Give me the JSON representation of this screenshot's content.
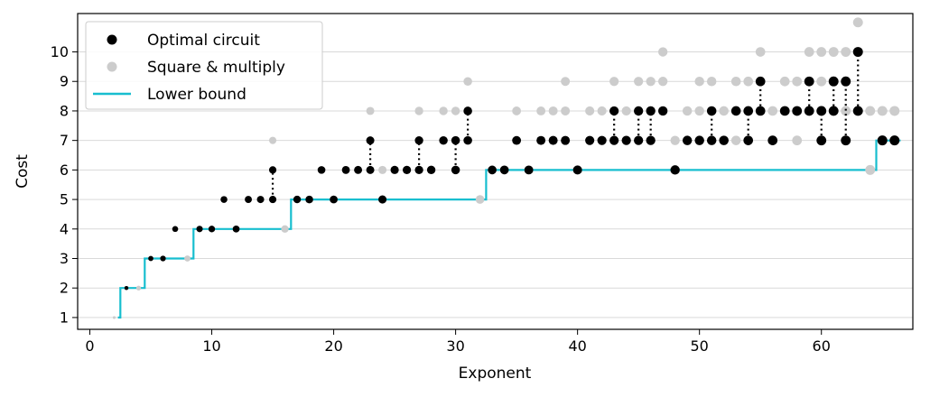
{
  "chart_data": {
    "type": "scatter",
    "xlabel": "Exponent",
    "ylabel": "Cost",
    "xlim": [
      -1,
      67.5
    ],
    "ylim": [
      0.6,
      11.3
    ],
    "x_ticks": [
      0,
      10,
      20,
      30,
      40,
      50,
      60
    ],
    "y_ticks": [
      1,
      2,
      3,
      4,
      5,
      6,
      7,
      8,
      9,
      10
    ],
    "grid": "horizontal",
    "legend_position": "top-left",
    "legend": {
      "optimal": "Optimal circuit",
      "square": "Square & multiply",
      "bound": "Lower bound"
    },
    "colors": {
      "optimal": "#000000",
      "square": "#cccccc",
      "bound": "#17becf",
      "connector": "#000000",
      "grid": "#d9d9d9"
    },
    "series": [
      {
        "key": "square",
        "points": [
          [
            2,
            1
          ],
          [
            3,
            2
          ],
          [
            4,
            2
          ],
          [
            5,
            3
          ],
          [
            6,
            3
          ],
          [
            7,
            4
          ],
          [
            8,
            3
          ],
          [
            9,
            4
          ],
          [
            10,
            4
          ],
          [
            11,
            5
          ],
          [
            12,
            4
          ],
          [
            13,
            5
          ],
          [
            14,
            5
          ],
          [
            15,
            6
          ],
          [
            16,
            4
          ],
          [
            17,
            5
          ],
          [
            18,
            5
          ],
          [
            19,
            6
          ],
          [
            20,
            5
          ],
          [
            21,
            6
          ],
          [
            22,
            6
          ],
          [
            23,
            7
          ],
          [
            24,
            6
          ],
          [
            25,
            6
          ],
          [
            26,
            6
          ],
          [
            27,
            7
          ],
          [
            28,
            6
          ],
          [
            29,
            7
          ],
          [
            30,
            7
          ],
          [
            31,
            8
          ],
          [
            32,
            5
          ],
          [
            33,
            6
          ],
          [
            34,
            6
          ],
          [
            35,
            7
          ],
          [
            36,
            6
          ],
          [
            37,
            7
          ],
          [
            38,
            7
          ],
          [
            39,
            8
          ],
          [
            40,
            6
          ],
          [
            41,
            7
          ],
          [
            42,
            7
          ],
          [
            43,
            8
          ],
          [
            44,
            7
          ],
          [
            45,
            8
          ],
          [
            46,
            8
          ],
          [
            47,
            9
          ],
          [
            48,
            6
          ],
          [
            49,
            7
          ],
          [
            50,
            7
          ],
          [
            51,
            8
          ],
          [
            52,
            7
          ],
          [
            53,
            8
          ],
          [
            54,
            8
          ],
          [
            55,
            9
          ],
          [
            56,
            7
          ],
          [
            57,
            8
          ],
          [
            58,
            8
          ],
          [
            59,
            9
          ],
          [
            60,
            8
          ],
          [
            61,
            9
          ],
          [
            62,
            9
          ],
          [
            63,
            10
          ],
          [
            64,
            6
          ],
          [
            65,
            7
          ],
          [
            66,
            7
          ],
          [
            31,
            9
          ],
          [
            35,
            8
          ],
          [
            37,
            8
          ],
          [
            38,
            8
          ],
          [
            39,
            9
          ],
          [
            41,
            8
          ],
          [
            42,
            8
          ],
          [
            43,
            9
          ],
          [
            45,
            9
          ],
          [
            46,
            9
          ],
          [
            47,
            10
          ],
          [
            49,
            8
          ],
          [
            50,
            8
          ],
          [
            51,
            9
          ],
          [
            52,
            8
          ],
          [
            53,
            9
          ],
          [
            54,
            9
          ],
          [
            55,
            10
          ],
          [
            56,
            8
          ],
          [
            57,
            9
          ],
          [
            58,
            9
          ],
          [
            59,
            10
          ],
          [
            60,
            9
          ],
          [
            61,
            10
          ],
          [
            62,
            10
          ],
          [
            63,
            11
          ],
          [
            15,
            7
          ],
          [
            23,
            8
          ],
          [
            27,
            8
          ],
          [
            29,
            8
          ],
          [
            30,
            8
          ],
          [
            44,
            8
          ],
          [
            46,
            7
          ],
          [
            48,
            7
          ],
          [
            50,
            9
          ],
          [
            53,
            7
          ],
          [
            58,
            7
          ],
          [
            60,
            10
          ],
          [
            62,
            8
          ],
          [
            64,
            8
          ],
          [
            65,
            8
          ],
          [
            66,
            8
          ]
        ]
      },
      {
        "key": "optimal",
        "points": [
          [
            3,
            2
          ],
          [
            5,
            3
          ],
          [
            6,
            3
          ],
          [
            7,
            4
          ],
          [
            9,
            4
          ],
          [
            10,
            4
          ],
          [
            11,
            5
          ],
          [
            12,
            4
          ],
          [
            13,
            5
          ],
          [
            14,
            5
          ],
          [
            15,
            5
          ],
          [
            15,
            6
          ],
          [
            17,
            5
          ],
          [
            18,
            5
          ],
          [
            19,
            6
          ],
          [
            20,
            5
          ],
          [
            21,
            6
          ],
          [
            22,
            6
          ],
          [
            23,
            6
          ],
          [
            23,
            7
          ],
          [
            24,
            5
          ],
          [
            25,
            6
          ],
          [
            26,
            6
          ],
          [
            27,
            6
          ],
          [
            27,
            7
          ],
          [
            28,
            6
          ],
          [
            29,
            7
          ],
          [
            30,
            6
          ],
          [
            30,
            7
          ],
          [
            31,
            7
          ],
          [
            31,
            8
          ],
          [
            33,
            6
          ],
          [
            34,
            6
          ],
          [
            35,
            7
          ],
          [
            36,
            6
          ],
          [
            37,
            7
          ],
          [
            38,
            7
          ],
          [
            39,
            7
          ],
          [
            40,
            6
          ],
          [
            41,
            7
          ],
          [
            42,
            7
          ],
          [
            43,
            7
          ],
          [
            43,
            8
          ],
          [
            44,
            7
          ],
          [
            45,
            7
          ],
          [
            45,
            8
          ],
          [
            46,
            7
          ],
          [
            46,
            8
          ],
          [
            47,
            8
          ],
          [
            48,
            6
          ],
          [
            49,
            7
          ],
          [
            50,
            7
          ],
          [
            51,
            7
          ],
          [
            51,
            8
          ],
          [
            52,
            7
          ],
          [
            53,
            8
          ],
          [
            54,
            7
          ],
          [
            54,
            8
          ],
          [
            55,
            8
          ],
          [
            55,
            9
          ],
          [
            56,
            7
          ],
          [
            57,
            8
          ],
          [
            58,
            8
          ],
          [
            59,
            8
          ],
          [
            59,
            9
          ],
          [
            60,
            7
          ],
          [
            60,
            8
          ],
          [
            61,
            8
          ],
          [
            61,
            9
          ],
          [
            62,
            7
          ],
          [
            62,
            9
          ],
          [
            63,
            8
          ],
          [
            63,
            10
          ],
          [
            65,
            7
          ],
          [
            66,
            7
          ]
        ]
      }
    ],
    "connectors": [
      [
        15,
        5,
        6
      ],
      [
        23,
        6,
        7
      ],
      [
        27,
        6,
        7
      ],
      [
        30,
        6,
        7
      ],
      [
        31,
        7,
        8
      ],
      [
        43,
        7,
        8
      ],
      [
        45,
        7,
        8
      ],
      [
        46,
        7,
        8
      ],
      [
        51,
        7,
        8
      ],
      [
        54,
        7,
        8
      ],
      [
        55,
        8,
        9
      ],
      [
        59,
        8,
        9
      ],
      [
        60,
        7,
        8
      ],
      [
        61,
        8,
        9
      ],
      [
        62,
        7,
        9
      ],
      [
        63,
        8,
        10
      ]
    ],
    "lower_bound": [
      [
        2.3,
        1
      ],
      [
        2.5,
        1
      ],
      [
        2.5,
        2
      ],
      [
        4.5,
        2
      ],
      [
        4.5,
        3
      ],
      [
        8.5,
        3
      ],
      [
        8.5,
        4
      ],
      [
        16.5,
        4
      ],
      [
        16.5,
        5
      ],
      [
        32.5,
        5
      ],
      [
        32.5,
        6
      ],
      [
        64.5,
        6
      ],
      [
        64.5,
        7
      ],
      [
        66.5,
        7
      ]
    ]
  }
}
